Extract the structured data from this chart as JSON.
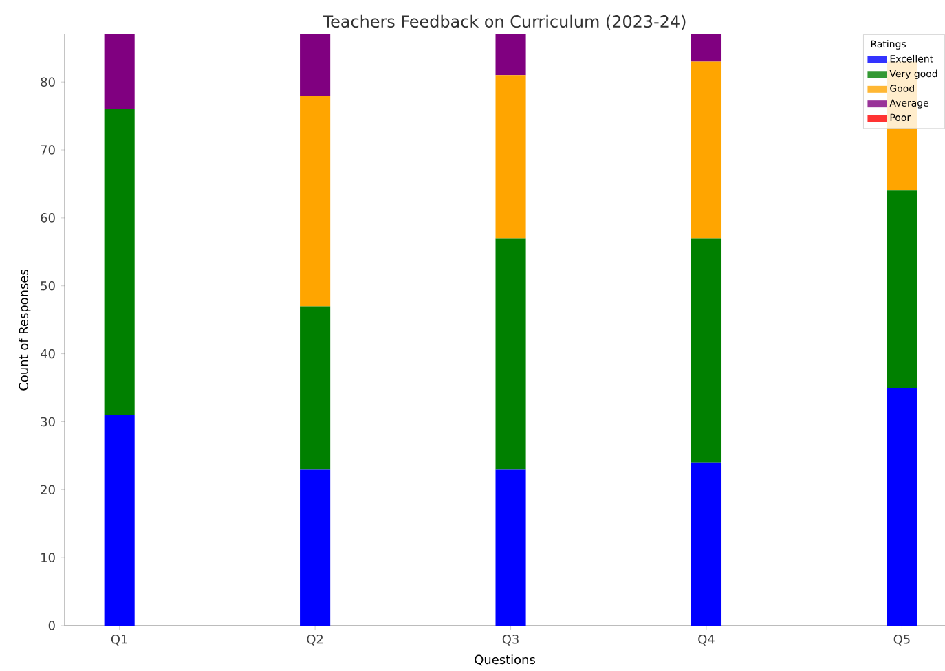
{
  "chart_data": {
    "type": "bar",
    "stacked": true,
    "title": "Teachers Feedback on Curriculum (2023-24)",
    "xlabel": "Questions",
    "ylabel": "Count of Responses",
    "legend_title": "Ratings",
    "categories": [
      "Q1",
      "Q2",
      "Q3",
      "Q4",
      "Q5"
    ],
    "series": [
      {
        "name": "Excellent",
        "color": "#0000ff",
        "values": [
          31,
          23,
          23,
          24,
          35
        ]
      },
      {
        "name": "Very good",
        "color": "#008000",
        "values": [
          45,
          24,
          34,
          33,
          29
        ]
      },
      {
        "name": "Good",
        "color": "#ffa500",
        "values": [
          0,
          31,
          24,
          26,
          19
        ]
      },
      {
        "name": "Average",
        "color": "#800080",
        "values": [
          11,
          9,
          6,
          4,
          null
        ]
      },
      {
        "name": "Poor",
        "color": "#ff0000",
        "values": [
          0,
          0,
          0,
          0,
          0
        ]
      }
    ],
    "ylim": [
      0,
      87
    ],
    "yticks": [
      0,
      10,
      20,
      30,
      40,
      50,
      60,
      70,
      80
    ],
    "grid": false,
    "legend": "top right"
  }
}
